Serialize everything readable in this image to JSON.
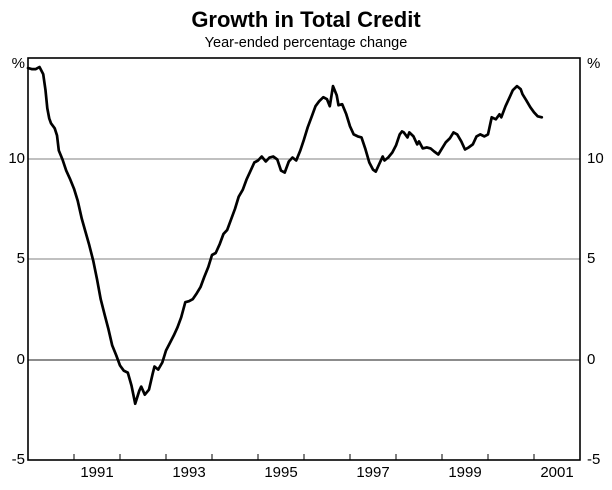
{
  "page": {
    "title": "Growth in Total Credit",
    "subtitle": "Year-ended percentage change"
  },
  "chart_data": {
    "type": "line",
    "title": "Growth in Total Credit",
    "subtitle": "Year-ended percentage change",
    "x_axis": {
      "range": [
        1990,
        2002
      ],
      "tick_years": [
        1991,
        1992,
        1993,
        1994,
        1995,
        1996,
        1997,
        1998,
        1999,
        2000,
        2001
      ],
      "label_years": [
        1991,
        1993,
        1995,
        1997,
        1999,
        2001
      ],
      "labels_centered_on_mid_year": true
    },
    "y_axis": {
      "range": [
        -5,
        15
      ],
      "unit": "%",
      "tick_values": [
        10,
        5,
        0,
        -5
      ],
      "gridlines": [
        10,
        5,
        0
      ],
      "shown_on_both_sides": true
    },
    "colors": {
      "line": "#000000",
      "grid": "#818181",
      "zero_line": "#1a1a1a",
      "frame": "#000000",
      "background": "#ffffff",
      "text": "#000000"
    },
    "series": [
      {
        "name": "Total credit",
        "points": [
          [
            1990.0,
            14.5
          ],
          [
            1990.08,
            14.45
          ],
          [
            1990.17,
            14.45
          ],
          [
            1990.25,
            14.55
          ],
          [
            1990.33,
            14.2
          ],
          [
            1990.38,
            13.4
          ],
          [
            1990.42,
            12.5
          ],
          [
            1990.46,
            12.0
          ],
          [
            1990.5,
            11.75
          ],
          [
            1990.58,
            11.5
          ],
          [
            1990.63,
            11.15
          ],
          [
            1990.67,
            10.4
          ],
          [
            1990.75,
            9.95
          ],
          [
            1990.83,
            9.4
          ],
          [
            1990.92,
            8.95
          ],
          [
            1991.0,
            8.5
          ],
          [
            1991.08,
            7.9
          ],
          [
            1991.17,
            7.0
          ],
          [
            1991.25,
            6.35
          ],
          [
            1991.33,
            5.7
          ],
          [
            1991.42,
            4.9
          ],
          [
            1991.5,
            4.0
          ],
          [
            1991.58,
            3.0
          ],
          [
            1991.67,
            2.2
          ],
          [
            1991.75,
            1.5
          ],
          [
            1991.83,
            0.7
          ],
          [
            1991.92,
            0.2
          ],
          [
            1992.0,
            -0.3
          ],
          [
            1992.08,
            -0.55
          ],
          [
            1992.17,
            -0.65
          ],
          [
            1992.25,
            -1.3
          ],
          [
            1992.33,
            -2.2
          ],
          [
            1992.42,
            -1.55
          ],
          [
            1992.46,
            -1.35
          ],
          [
            1992.54,
            -1.75
          ],
          [
            1992.63,
            -1.5
          ],
          [
            1992.71,
            -0.7
          ],
          [
            1992.75,
            -0.35
          ],
          [
            1992.83,
            -0.5
          ],
          [
            1992.92,
            -0.15
          ],
          [
            1993.0,
            0.45
          ],
          [
            1993.08,
            0.8
          ],
          [
            1993.17,
            1.2
          ],
          [
            1993.25,
            1.6
          ],
          [
            1993.33,
            2.1
          ],
          [
            1993.42,
            2.85
          ],
          [
            1993.5,
            2.9
          ],
          [
            1993.58,
            3.0
          ],
          [
            1993.67,
            3.3
          ],
          [
            1993.75,
            3.6
          ],
          [
            1993.83,
            4.1
          ],
          [
            1993.92,
            4.6
          ],
          [
            1994.0,
            5.2
          ],
          [
            1994.08,
            5.3
          ],
          [
            1994.17,
            5.75
          ],
          [
            1994.25,
            6.25
          ],
          [
            1994.33,
            6.45
          ],
          [
            1994.42,
            7.0
          ],
          [
            1994.5,
            7.5
          ],
          [
            1994.58,
            8.1
          ],
          [
            1994.67,
            8.45
          ],
          [
            1994.75,
            8.95
          ],
          [
            1994.83,
            9.35
          ],
          [
            1994.92,
            9.8
          ],
          [
            1995.0,
            9.9
          ],
          [
            1995.08,
            10.1
          ],
          [
            1995.17,
            9.85
          ],
          [
            1995.25,
            10.05
          ],
          [
            1995.33,
            10.1
          ],
          [
            1995.42,
            9.95
          ],
          [
            1995.5,
            9.4
          ],
          [
            1995.58,
            9.3
          ],
          [
            1995.67,
            9.85
          ],
          [
            1995.75,
            10.05
          ],
          [
            1995.83,
            9.9
          ],
          [
            1995.92,
            10.4
          ],
          [
            1996.0,
            10.95
          ],
          [
            1996.08,
            11.55
          ],
          [
            1996.17,
            12.1
          ],
          [
            1996.25,
            12.6
          ],
          [
            1996.33,
            12.85
          ],
          [
            1996.42,
            13.05
          ],
          [
            1996.5,
            12.95
          ],
          [
            1996.56,
            12.6
          ],
          [
            1996.63,
            13.6
          ],
          [
            1996.71,
            13.15
          ],
          [
            1996.75,
            12.65
          ],
          [
            1996.83,
            12.7
          ],
          [
            1996.92,
            12.2
          ],
          [
            1997.0,
            11.6
          ],
          [
            1997.08,
            11.2
          ],
          [
            1997.17,
            11.1
          ],
          [
            1997.25,
            11.05
          ],
          [
            1997.33,
            10.5
          ],
          [
            1997.42,
            9.8
          ],
          [
            1997.5,
            9.45
          ],
          [
            1997.56,
            9.35
          ],
          [
            1997.63,
            9.7
          ],
          [
            1997.71,
            10.1
          ],
          [
            1997.75,
            9.9
          ],
          [
            1997.83,
            10.05
          ],
          [
            1997.92,
            10.3
          ],
          [
            1998.0,
            10.65
          ],
          [
            1998.08,
            11.2
          ],
          [
            1998.13,
            11.35
          ],
          [
            1998.17,
            11.3
          ],
          [
            1998.25,
            11.05
          ],
          [
            1998.29,
            11.3
          ],
          [
            1998.38,
            11.1
          ],
          [
            1998.46,
            10.7
          ],
          [
            1998.5,
            10.85
          ],
          [
            1998.58,
            10.5
          ],
          [
            1998.67,
            10.55
          ],
          [
            1998.75,
            10.5
          ],
          [
            1998.83,
            10.35
          ],
          [
            1998.92,
            10.2
          ],
          [
            1999.0,
            10.5
          ],
          [
            1999.08,
            10.8
          ],
          [
            1999.17,
            11.0
          ],
          [
            1999.25,
            11.3
          ],
          [
            1999.33,
            11.2
          ],
          [
            1999.42,
            10.85
          ],
          [
            1999.5,
            10.45
          ],
          [
            1999.58,
            10.55
          ],
          [
            1999.67,
            10.7
          ],
          [
            1999.75,
            11.1
          ],
          [
            1999.83,
            11.2
          ],
          [
            1999.92,
            11.1
          ],
          [
            2000.0,
            11.2
          ],
          [
            2000.08,
            12.05
          ],
          [
            2000.17,
            11.95
          ],
          [
            2000.25,
            12.2
          ],
          [
            2000.29,
            12.05
          ],
          [
            2000.38,
            12.6
          ],
          [
            2000.46,
            13.0
          ],
          [
            2000.54,
            13.4
          ],
          [
            2000.63,
            13.6
          ],
          [
            2000.71,
            13.45
          ],
          [
            2000.75,
            13.2
          ],
          [
            2000.83,
            12.9
          ],
          [
            2000.92,
            12.55
          ],
          [
            2001.0,
            12.3
          ],
          [
            2001.08,
            12.1
          ],
          [
            2001.17,
            12.05
          ]
        ]
      }
    ]
  }
}
